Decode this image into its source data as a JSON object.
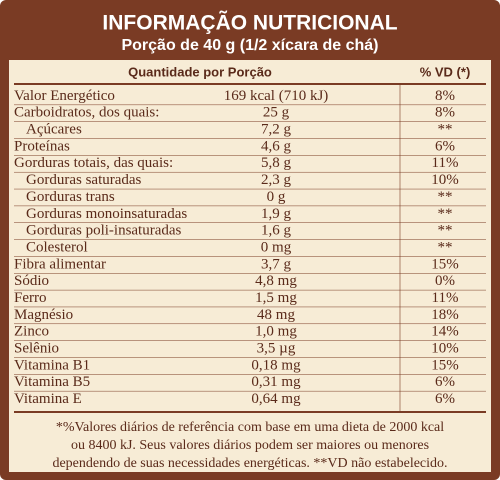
{
  "header": {
    "title": "INFORMAÇÃO NUTRICIONAL",
    "subtitle": "Porção de 40 g (1/2 xícara de chá)"
  },
  "table": {
    "columns": [
      "Quantidade por Porção",
      "% VD (*)"
    ],
    "rows": [
      {
        "name": "Valor Energético",
        "amount": "169 kcal (710 kJ)",
        "vd": "8%"
      },
      {
        "name": "Carboidratos, dos quais:",
        "amount": "25 g",
        "vd": "8%",
        "items": [
          {
            "name": "Açúcares",
            "amount": "7,2 g",
            "vd": "**"
          }
        ]
      },
      {
        "name": "Proteínas",
        "amount": "4,6 g",
        "vd": "6%"
      },
      {
        "name": "Gorduras totais, das quais:",
        "amount": "5,8 g",
        "vd": "11%",
        "items": [
          {
            "name": "Gorduras saturadas",
            "amount": "2,3 g",
            "vd": "10%"
          },
          {
            "name": "Gorduras trans",
            "amount": "0 g",
            "vd": "**"
          },
          {
            "name": "Gorduras monoinsaturadas",
            "amount": "1,9 g",
            "vd": "**"
          },
          {
            "name": "Gorduras poli-insaturadas",
            "amount": "1,6 g",
            "vd": "**"
          },
          {
            "name": "Colesterol",
            "amount": "0 mg",
            "vd": "**"
          }
        ]
      },
      {
        "name": "Fibra alimentar",
        "amount": "3,7 g",
        "vd": "15%"
      },
      {
        "name": "Sódio",
        "amount": "4,8 mg",
        "vd": "0%"
      },
      {
        "name": "Ferro",
        "amount": "1,5 mg",
        "vd": "11%"
      },
      {
        "name": "Magnésio",
        "amount": "48 mg",
        "vd": "18%"
      },
      {
        "name": "Zinco",
        "amount": "1,0 mg",
        "vd": "14%"
      },
      {
        "name": "Selênio",
        "amount": "3,5 µg",
        "vd": "10%"
      },
      {
        "name": "Vitamina B1",
        "amount": "0,18 mg",
        "vd": "15%"
      },
      {
        "name": "Vitamina B5",
        "amount": "0,31 mg",
        "vd": "6%"
      },
      {
        "name": "Vitamina E",
        "amount": "0,64 mg",
        "vd": "6%"
      }
    ]
  },
  "footnote": [
    "*%Valores diários de referência com base em uma dieta de 2000 kcal",
    "ou 8400 kJ. Seus valores diários podem ser maiores ou menores",
    "dependendo de suas necessidades energéticas. **VD não estabelecido."
  ]
}
